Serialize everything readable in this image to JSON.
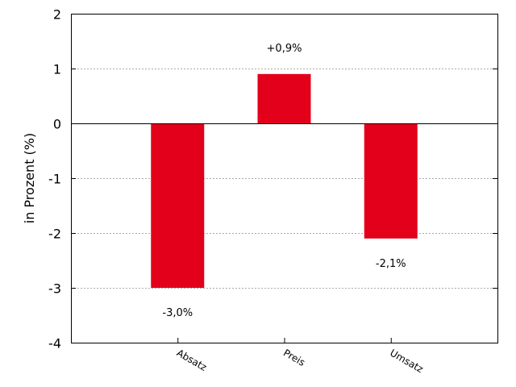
{
  "chart_data": {
    "type": "bar",
    "categories": [
      "Absatz",
      "Preis",
      "Umsatz"
    ],
    "values": [
      -3.0,
      0.9,
      -2.1
    ],
    "data_labels": [
      "-3,0%",
      "+0,9%",
      "-2,1%"
    ],
    "ylabel": "in Prozent (%)",
    "xlabel": "",
    "ylim": [
      -4,
      2
    ],
    "yticks": [
      2,
      1,
      0,
      -1,
      -2,
      -3,
      -4
    ],
    "grid": "horizontal dotted",
    "bar_color": "#e2001a",
    "legend": "none"
  }
}
